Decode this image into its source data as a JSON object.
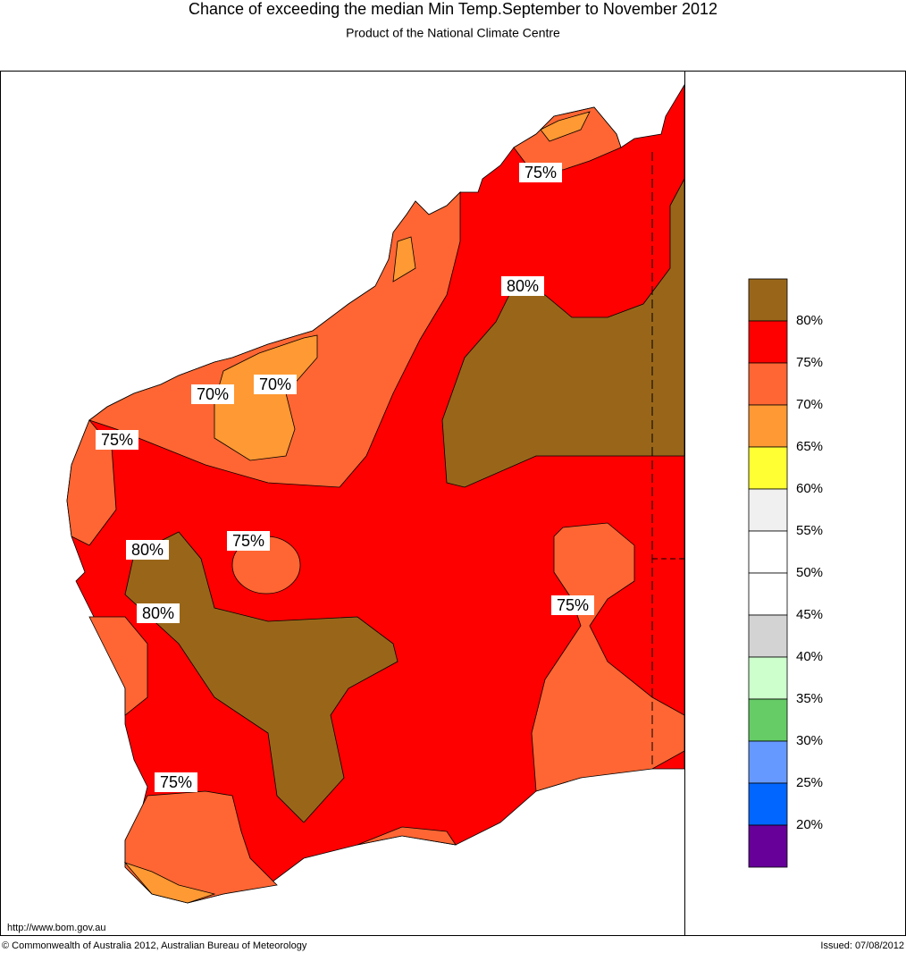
{
  "header": {
    "title": "Chance of exceeding the median Min Temp.September to November 2012",
    "subtitle": "Product of the National Climate Centre"
  },
  "map": {
    "contour_labels": [
      "75%",
      "80%",
      "70%",
      "70%",
      "75%",
      "80%",
      "75%",
      "80%",
      "75%",
      "75%"
    ]
  },
  "legend": {
    "colors": [
      "#996619",
      "#ff0000",
      "#ff6633",
      "#ff9933",
      "#ffff33",
      "#f0f0f0",
      "#ffffff",
      "#ffffff",
      "#d3d3d3",
      "#ccffcc",
      "#66cc66",
      "#6699ff",
      "#0066ff",
      "#660099"
    ],
    "labels": [
      "80%",
      "75%",
      "70%",
      "65%",
      "60%",
      "55%",
      "50%",
      "45%",
      "40%",
      "35%",
      "30%",
      "25%",
      "20%"
    ]
  },
  "footer": {
    "url": "http://www.bom.gov.au",
    "copyright": "© Commonwealth of Australia 2012, Australian Bureau of Meteorology",
    "issued": "Issued: 07/08/2012"
  }
}
